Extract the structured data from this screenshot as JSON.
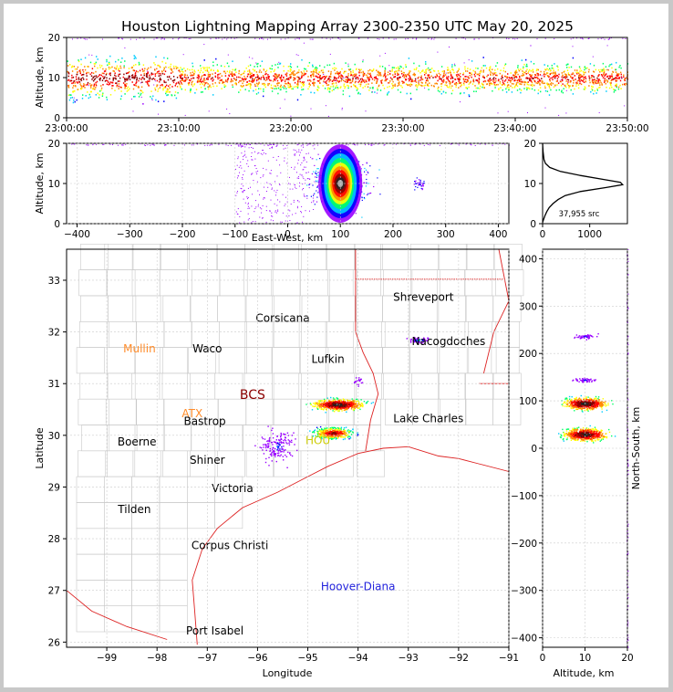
{
  "title": "Houston Lightning Mapping Array 2300-2350 UTC May 20, 2025",
  "chart_data": [
    {
      "panel": "time-altitude",
      "type": "scatter",
      "ylabel": "Altitude, km",
      "ylim": [
        0,
        20
      ],
      "yticks": [
        "0",
        "10",
        "20"
      ],
      "xlim": [
        "23:00:00",
        "23:50:00"
      ],
      "xticks": [
        "23:00:00",
        "23:10:00",
        "23:20:00",
        "23:30:00",
        "23:40:00",
        "23:50:00"
      ],
      "band": {
        "center_altitude_km": 10,
        "spread_km": 3
      }
    },
    {
      "panel": "east-west-altitude",
      "type": "scatter",
      "xlabel": "East-West, km",
      "ylabel": "Altitude, km",
      "xlim": [
        -420,
        420
      ],
      "ylim": [
        0,
        20
      ],
      "xticks": [
        "−400",
        "−300",
        "−200",
        "−100",
        "0",
        "100",
        "200",
        "300",
        "400"
      ],
      "yticks": [
        "0",
        "10",
        "20"
      ],
      "clusters": [
        {
          "x_km": 100,
          "altitude_km": 10,
          "density": "high"
        },
        {
          "x_km": 250,
          "altitude_km": 10,
          "density": "low"
        }
      ]
    },
    {
      "panel": "altitude-histogram",
      "type": "line",
      "xlim": [
        0,
        1800
      ],
      "ylim": [
        0,
        20
      ],
      "xticks": [
        "0",
        "1000"
      ],
      "yticks": [
        "0",
        "10",
        "20"
      ],
      "annotation": "37,955 src",
      "profile": [
        {
          "alt": 0.3,
          "count": 0
        },
        {
          "alt": 1,
          "count": 20
        },
        {
          "alt": 2,
          "count": 50
        },
        {
          "alt": 3,
          "count": 90
        },
        {
          "alt": 4,
          "count": 140
        },
        {
          "alt": 5,
          "count": 220
        },
        {
          "alt": 6,
          "count": 330
        },
        {
          "alt": 7,
          "count": 480
        },
        {
          "alt": 8,
          "count": 800
        },
        {
          "alt": 9,
          "count": 1350
        },
        {
          "alt": 9.7,
          "count": 1700
        },
        {
          "alt": 10.3,
          "count": 1650
        },
        {
          "alt": 11,
          "count": 1300
        },
        {
          "alt": 12,
          "count": 800
        },
        {
          "alt": 13,
          "count": 380
        },
        {
          "alt": 14,
          "count": 150
        },
        {
          "alt": 15,
          "count": 60
        },
        {
          "alt": 16,
          "count": 30
        },
        {
          "alt": 18,
          "count": 10
        },
        {
          "alt": 20,
          "count": 0
        }
      ]
    },
    {
      "panel": "plan-view-map",
      "type": "scatter",
      "xlabel": "Longitude",
      "ylabel": "Latitude",
      "xlim": [
        -99.8,
        -91
      ],
      "ylim": [
        25.9,
        33.6
      ],
      "xticks": [
        "−99",
        "−98",
        "−97",
        "−96",
        "−95",
        "−94",
        "−93",
        "−92",
        "−91"
      ],
      "yticks": [
        "26",
        "27",
        "28",
        "29",
        "30",
        "31",
        "32",
        "33"
      ],
      "clusters": [
        {
          "lon": -94.4,
          "lat": 30.6,
          "density": "high"
        },
        {
          "lon": -94.5,
          "lat": 30.05,
          "density": "high"
        },
        {
          "lon": -95.6,
          "lat": 29.8,
          "density": "low"
        },
        {
          "lon": -92.8,
          "lat": 31.85,
          "density": "low"
        }
      ]
    },
    {
      "panel": "altitude-north-south",
      "type": "scatter",
      "xlabel": "Altitude, km",
      "ylabel": "North-South, km",
      "xlim": [
        0,
        20
      ],
      "ylim": [
        -420,
        420
      ],
      "xticks": [
        "0",
        "10",
        "20"
      ],
      "yticks": [
        "−400",
        "−300",
        "−200",
        "−100",
        "0",
        "100",
        "200",
        "300",
        "400"
      ],
      "clusters": [
        {
          "altitude_km": 10,
          "y_km": 95,
          "density": "high"
        },
        {
          "altitude_km": 10,
          "y_km": 30,
          "density": "high"
        },
        {
          "altitude_km": 10,
          "y_km": 237,
          "density": "low"
        },
        {
          "altitude_km": 10,
          "y_km": 145,
          "density": "low"
        }
      ]
    }
  ],
  "map_labels": [
    {
      "text": "Shreveport",
      "lon": -92.7,
      "lat": 32.6,
      "color": "#000000"
    },
    {
      "text": "Corsicana",
      "lon": -95.5,
      "lat": 32.2,
      "color": "#000000"
    },
    {
      "text": "Mullin",
      "lon": -98.35,
      "lat": 31.6,
      "color": "#ff8c2a"
    },
    {
      "text": "Waco",
      "lon": -97.0,
      "lat": 31.6,
      "color": "#000000"
    },
    {
      "text": "Nacogdoches",
      "lon": -92.2,
      "lat": 31.75,
      "color": "#000000"
    },
    {
      "text": "Lufkin",
      "lon": -94.6,
      "lat": 31.4,
      "color": "#000000"
    },
    {
      "text": "BCS",
      "lon": -96.1,
      "lat": 30.7,
      "color": "#8b0000"
    },
    {
      "text": "ATX",
      "lon": -97.3,
      "lat": 30.35,
      "color": "#ff8c2a"
    },
    {
      "text": "Bastrop",
      "lon": -97.05,
      "lat": 30.2,
      "color": "#000000"
    },
    {
      "text": "Lake Charles",
      "lon": -92.6,
      "lat": 30.25,
      "color": "#000000"
    },
    {
      "text": "Boerne",
      "lon": -98.4,
      "lat": 29.8,
      "color": "#000000"
    },
    {
      "text": "HOU",
      "lon": -94.8,
      "lat": 29.83,
      "color": "#cccc00"
    },
    {
      "text": "Shiner",
      "lon": -97.0,
      "lat": 29.45,
      "color": "#000000"
    },
    {
      "text": "Victoria",
      "lon": -96.5,
      "lat": 28.9,
      "color": "#000000"
    },
    {
      "text": "Tilden",
      "lon": -98.45,
      "lat": 28.5,
      "color": "#000000"
    },
    {
      "text": "Corpus Christi",
      "lon": -96.55,
      "lat": 27.8,
      "color": "#000000"
    },
    {
      "text": "Hoover-Diana",
      "lon": -94.0,
      "lat": 27.0,
      "color": "#2222dd"
    },
    {
      "text": "Port Isabel",
      "lon": -96.85,
      "lat": 26.15,
      "color": "#000000"
    }
  ],
  "colors": {
    "density_scale": [
      "#9900ff",
      "#0000ff",
      "#00ccff",
      "#00ff66",
      "#ffff00",
      "#ff8800",
      "#ff0000",
      "#880000",
      "#222222",
      "#bbbbbb"
    ],
    "state_border": "#dd2222",
    "county_border": "#c8c8c8"
  }
}
